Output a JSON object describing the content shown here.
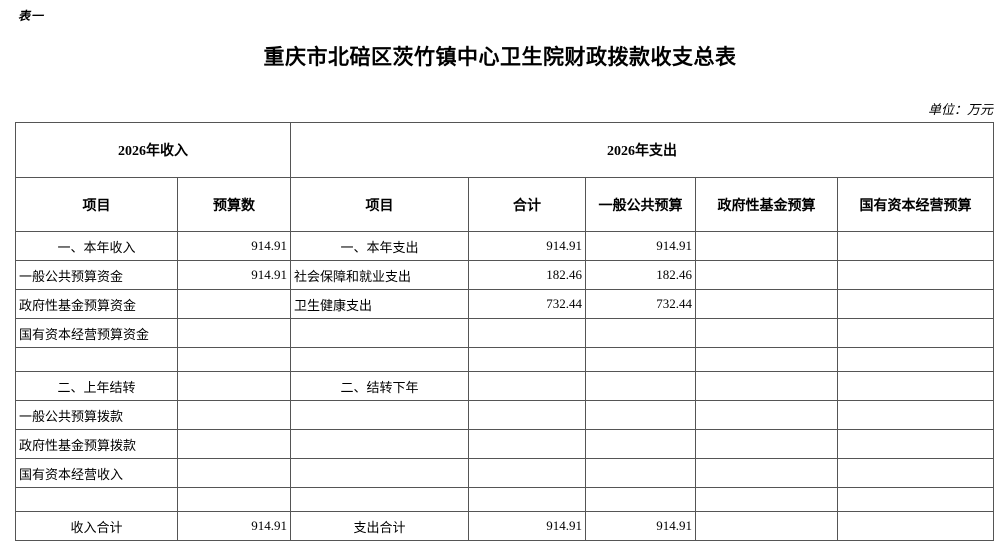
{
  "page": {
    "table_label": "表一",
    "title": "重庆市北碚区茨竹镇中心卫生院财政拨款收支总表",
    "unit_note": "单位：万元"
  },
  "table": {
    "header": {
      "income_group": "2026年收入",
      "expense_group": "2026年支出",
      "income_cols": [
        "项目",
        "预算数"
      ],
      "expense_cols": [
        "项目",
        "合计",
        "一般公共预算",
        "政府性基金预算",
        "国有资本经营预算"
      ]
    },
    "rows": [
      {
        "emphasis": true,
        "spacer": false,
        "income_item": "一、本年收入",
        "income_budget": "914.91",
        "expense_item": "一、本年支出",
        "total": "914.91",
        "general_public": "914.91",
        "gov_fund": "",
        "state_capital": ""
      },
      {
        "emphasis": false,
        "spacer": false,
        "income_item": "一般公共预算资金",
        "income_budget": "914.91",
        "expense_item": "社会保障和就业支出",
        "total": "182.46",
        "general_public": "182.46",
        "gov_fund": "",
        "state_capital": ""
      },
      {
        "emphasis": false,
        "spacer": false,
        "income_item": "政府性基金预算资金",
        "income_budget": "",
        "expense_item": "卫生健康支出",
        "total": "732.44",
        "general_public": "732.44",
        "gov_fund": "",
        "state_capital": ""
      },
      {
        "emphasis": false,
        "spacer": false,
        "income_item": "国有资本经营预算资金",
        "income_budget": "",
        "expense_item": "",
        "total": "",
        "general_public": "",
        "gov_fund": "",
        "state_capital": ""
      },
      {
        "emphasis": false,
        "spacer": true,
        "income_item": "",
        "income_budget": "",
        "expense_item": "",
        "total": "",
        "general_public": "",
        "gov_fund": "",
        "state_capital": ""
      },
      {
        "emphasis": true,
        "spacer": false,
        "income_item": "二、上年结转",
        "income_budget": "",
        "expense_item": "二、结转下年",
        "total": "",
        "general_public": "",
        "gov_fund": "",
        "state_capital": ""
      },
      {
        "emphasis": false,
        "spacer": false,
        "income_item": "一般公共预算拨款",
        "income_budget": "",
        "expense_item": "",
        "total": "",
        "general_public": "",
        "gov_fund": "",
        "state_capital": ""
      },
      {
        "emphasis": false,
        "spacer": false,
        "income_item": "政府性基金预算拨款",
        "income_budget": "",
        "expense_item": "",
        "total": "",
        "general_public": "",
        "gov_fund": "",
        "state_capital": ""
      },
      {
        "emphasis": false,
        "spacer": false,
        "income_item": "国有资本经营收入",
        "income_budget": "",
        "expense_item": "",
        "total": "",
        "general_public": "",
        "gov_fund": "",
        "state_capital": ""
      },
      {
        "emphasis": false,
        "spacer": true,
        "income_item": "",
        "income_budget": "",
        "expense_item": "",
        "total": "",
        "general_public": "",
        "gov_fund": "",
        "state_capital": ""
      },
      {
        "emphasis": true,
        "spacer": false,
        "income_item": "收入合计",
        "income_budget": "914.91",
        "expense_item": "支出合计",
        "total": "914.91",
        "general_public": "914.91",
        "gov_fund": "",
        "state_capital": ""
      }
    ]
  }
}
